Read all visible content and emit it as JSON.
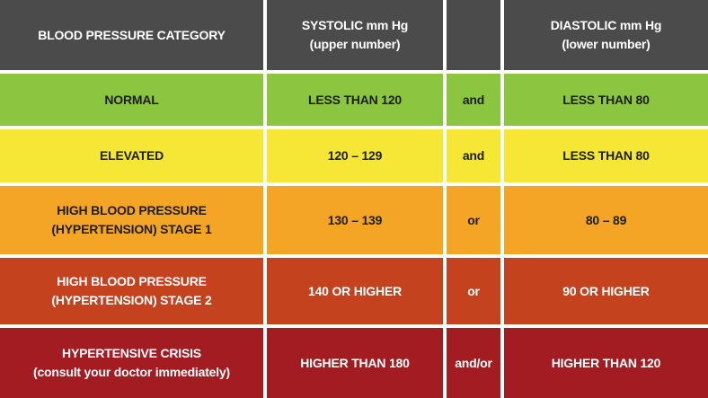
{
  "table": {
    "header": [
      [
        "BLOOD PRESSURE CATEGORY"
      ],
      [
        "SYSTOLIC mm Hg",
        "(upper number)"
      ],
      [],
      [
        "DIASTOLIC mm Hg",
        "(lower number)"
      ]
    ],
    "rows": [
      [
        [
          "NORMAL"
        ],
        [
          "LESS THAN 120"
        ],
        [
          "and"
        ],
        [
          "LESS THAN 80"
        ]
      ],
      [
        [
          "ELEVATED"
        ],
        [
          "120 – 129"
        ],
        [
          "and"
        ],
        [
          "LESS THAN 80"
        ]
      ],
      [
        [
          "HIGH BLOOD PRESSURE",
          "(HYPERTENSION) STAGE 1"
        ],
        [
          "130 – 139"
        ],
        [
          "or"
        ],
        [
          "80 – 89"
        ]
      ],
      [
        [
          "HIGH BLOOD PRESSURE",
          "(HYPERTENSION) STAGE 2"
        ],
        [
          "140 OR HIGHER"
        ],
        [
          "or"
        ],
        [
          "90 OR HIGHER"
        ]
      ],
      [
        [
          "HYPERTENSIVE CRISIS",
          "(consult your doctor immediately)"
        ],
        [
          "HIGHER THAN 180"
        ],
        [
          "and/or"
        ],
        [
          "HIGHER THAN 120"
        ]
      ]
    ]
  }
}
